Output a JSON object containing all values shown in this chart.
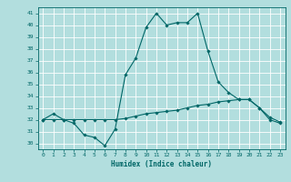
{
  "xlabel": "Humidex (Indice chaleur)",
  "ylabel": "",
  "background_color": "#b2dede",
  "grid_color": "#ffffff",
  "line_color": "#006666",
  "xlim": [
    -0.5,
    23.5
  ],
  "ylim": [
    29.5,
    41.5
  ],
  "xticks": [
    0,
    1,
    2,
    3,
    4,
    5,
    6,
    7,
    8,
    9,
    10,
    11,
    12,
    13,
    14,
    15,
    16,
    17,
    18,
    19,
    20,
    21,
    22,
    23
  ],
  "yticks": [
    30,
    31,
    32,
    33,
    34,
    35,
    36,
    37,
    38,
    39,
    40,
    41
  ],
  "series1_x": [
    0,
    1,
    2,
    3,
    4,
    5,
    6,
    7,
    8,
    9,
    10,
    11,
    12,
    13,
    14,
    15,
    16,
    17,
    18,
    19,
    20,
    21,
    22,
    23
  ],
  "series1_y": [
    32.0,
    32.5,
    32.0,
    31.7,
    30.7,
    30.5,
    29.8,
    31.2,
    35.8,
    37.2,
    39.8,
    41.0,
    40.0,
    40.2,
    40.2,
    41.0,
    37.8,
    35.2,
    34.3,
    33.7,
    33.7,
    33.0,
    32.0,
    31.7
  ],
  "series2_x": [
    0,
    1,
    2,
    3,
    4,
    5,
    6,
    7,
    8,
    9,
    10,
    11,
    12,
    13,
    14,
    15,
    16,
    17,
    18,
    19,
    20,
    21,
    22,
    23
  ],
  "series2_y": [
    32.0,
    32.0,
    32.0,
    32.0,
    32.0,
    32.0,
    32.0,
    32.0,
    32.1,
    32.3,
    32.5,
    32.6,
    32.7,
    32.8,
    33.0,
    33.2,
    33.3,
    33.5,
    33.6,
    33.7,
    33.7,
    33.0,
    32.2,
    31.8
  ]
}
